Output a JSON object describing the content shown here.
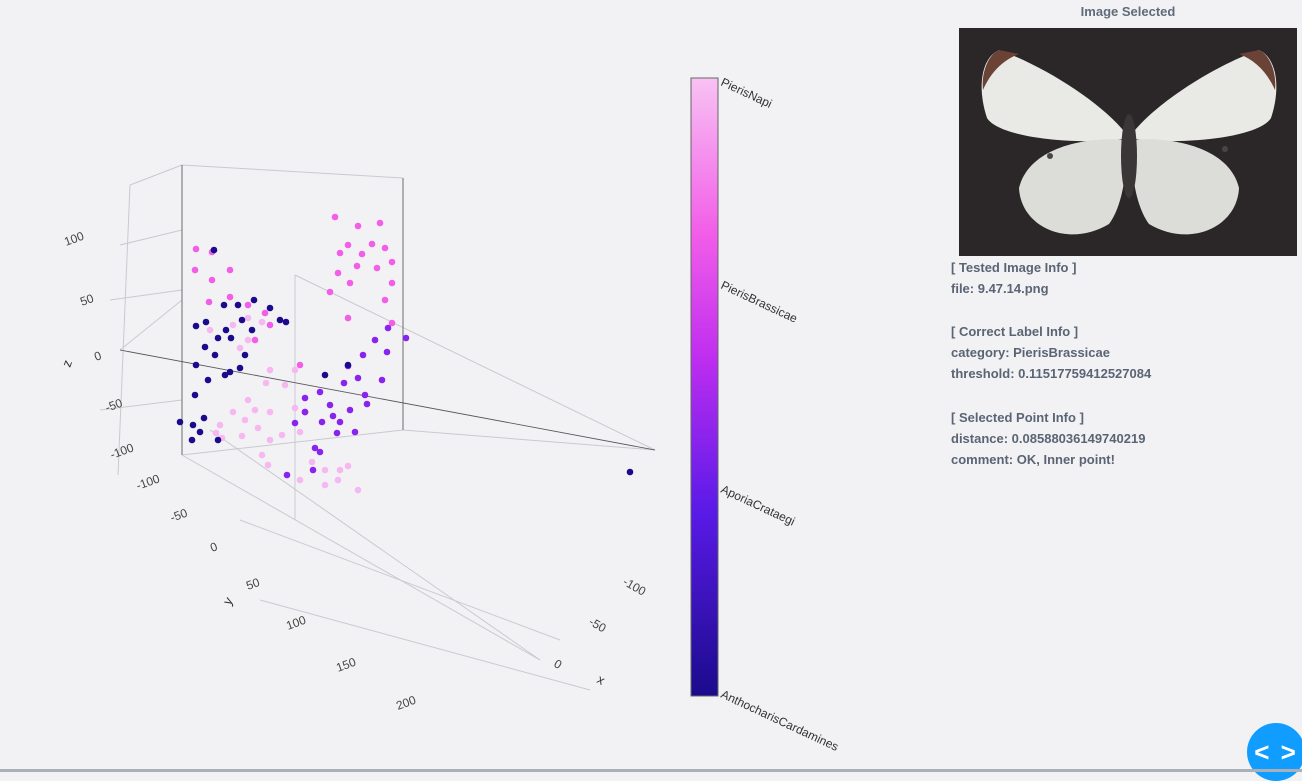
{
  "plot": {
    "axes": {
      "x": {
        "title": "x",
        "ticks": [
          "-100",
          "-50",
          "0"
        ]
      },
      "y": {
        "title": "y",
        "ticks": [
          "-100",
          "-50",
          "0",
          "50",
          "100",
          "150",
          "200"
        ]
      },
      "z": {
        "title": "z",
        "ticks": [
          "100",
          "50",
          "0",
          "-50",
          "-100"
        ]
      }
    },
    "colorbar": {
      "labels": [
        "PierisNapi",
        "PierisBrassicae",
        "AporiaCrataegi",
        "AnthocharisCardamines"
      ],
      "colors": {
        "PierisNapi": "#f7b8f2",
        "PierisBrassicae": "#f25ee8",
        "AporiaCrataegi": "#8a23ee",
        "AnthocharisCardamines": "#1b0b8c"
      }
    }
  },
  "panel": {
    "title": "Image Selected",
    "image_alt": "butterfly-photo",
    "tested_header": "[ Tested Image Info ]",
    "file_line": "file: 9.47.14.png",
    "correct_header": "[ Correct Label Info ]",
    "category_line": "category: PierisBrassicae",
    "threshold_line": "threshold: 0.11517759412527084",
    "selected_header": "[ Selected Point Info ]",
    "distance_line": "distance: 0.08588036149740219",
    "comment_line": "comment: OK, Inner point!"
  },
  "nav": {
    "icon": "chevron-left-right-icon",
    "label": "< >"
  }
}
